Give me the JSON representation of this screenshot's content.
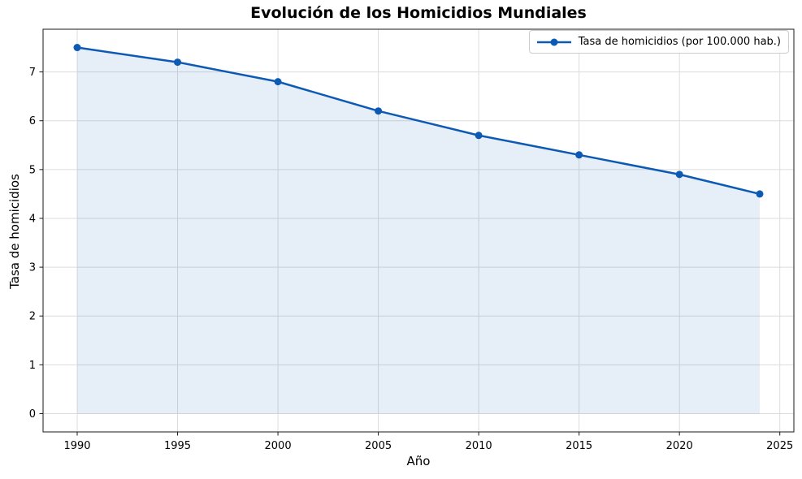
{
  "chart_data": {
    "type": "line",
    "title": "Evolución de los Homicidios Mundiales",
    "xlabel": "Año",
    "ylabel": "Tasa de homicidios",
    "x": [
      1990,
      1995,
      2000,
      2005,
      2010,
      2015,
      2020,
      2024
    ],
    "series": [
      {
        "name": "Tasa de homicidios (por 100.000 hab.)",
        "values": [
          7.5,
          7.2,
          6.8,
          6.2,
          5.7,
          5.3,
          4.9,
          4.5
        ],
        "color": "#0d5ab5",
        "marker": "circle",
        "area_fill": true,
        "area_fill_opacity": 0.1,
        "area_baseline": 0
      }
    ],
    "xlim": [
      1988.3,
      2025.7
    ],
    "ylim": [
      -0.375,
      7.875
    ],
    "xticks": [
      1990,
      1995,
      2000,
      2005,
      2010,
      2015,
      2020,
      2025
    ],
    "yticks": [
      0,
      1,
      2,
      3,
      4,
      5,
      6,
      7
    ],
    "grid": true,
    "grid_color": "#dcdcdc",
    "spine_color": "#1a1a1a",
    "legend_position": "upper right"
  }
}
